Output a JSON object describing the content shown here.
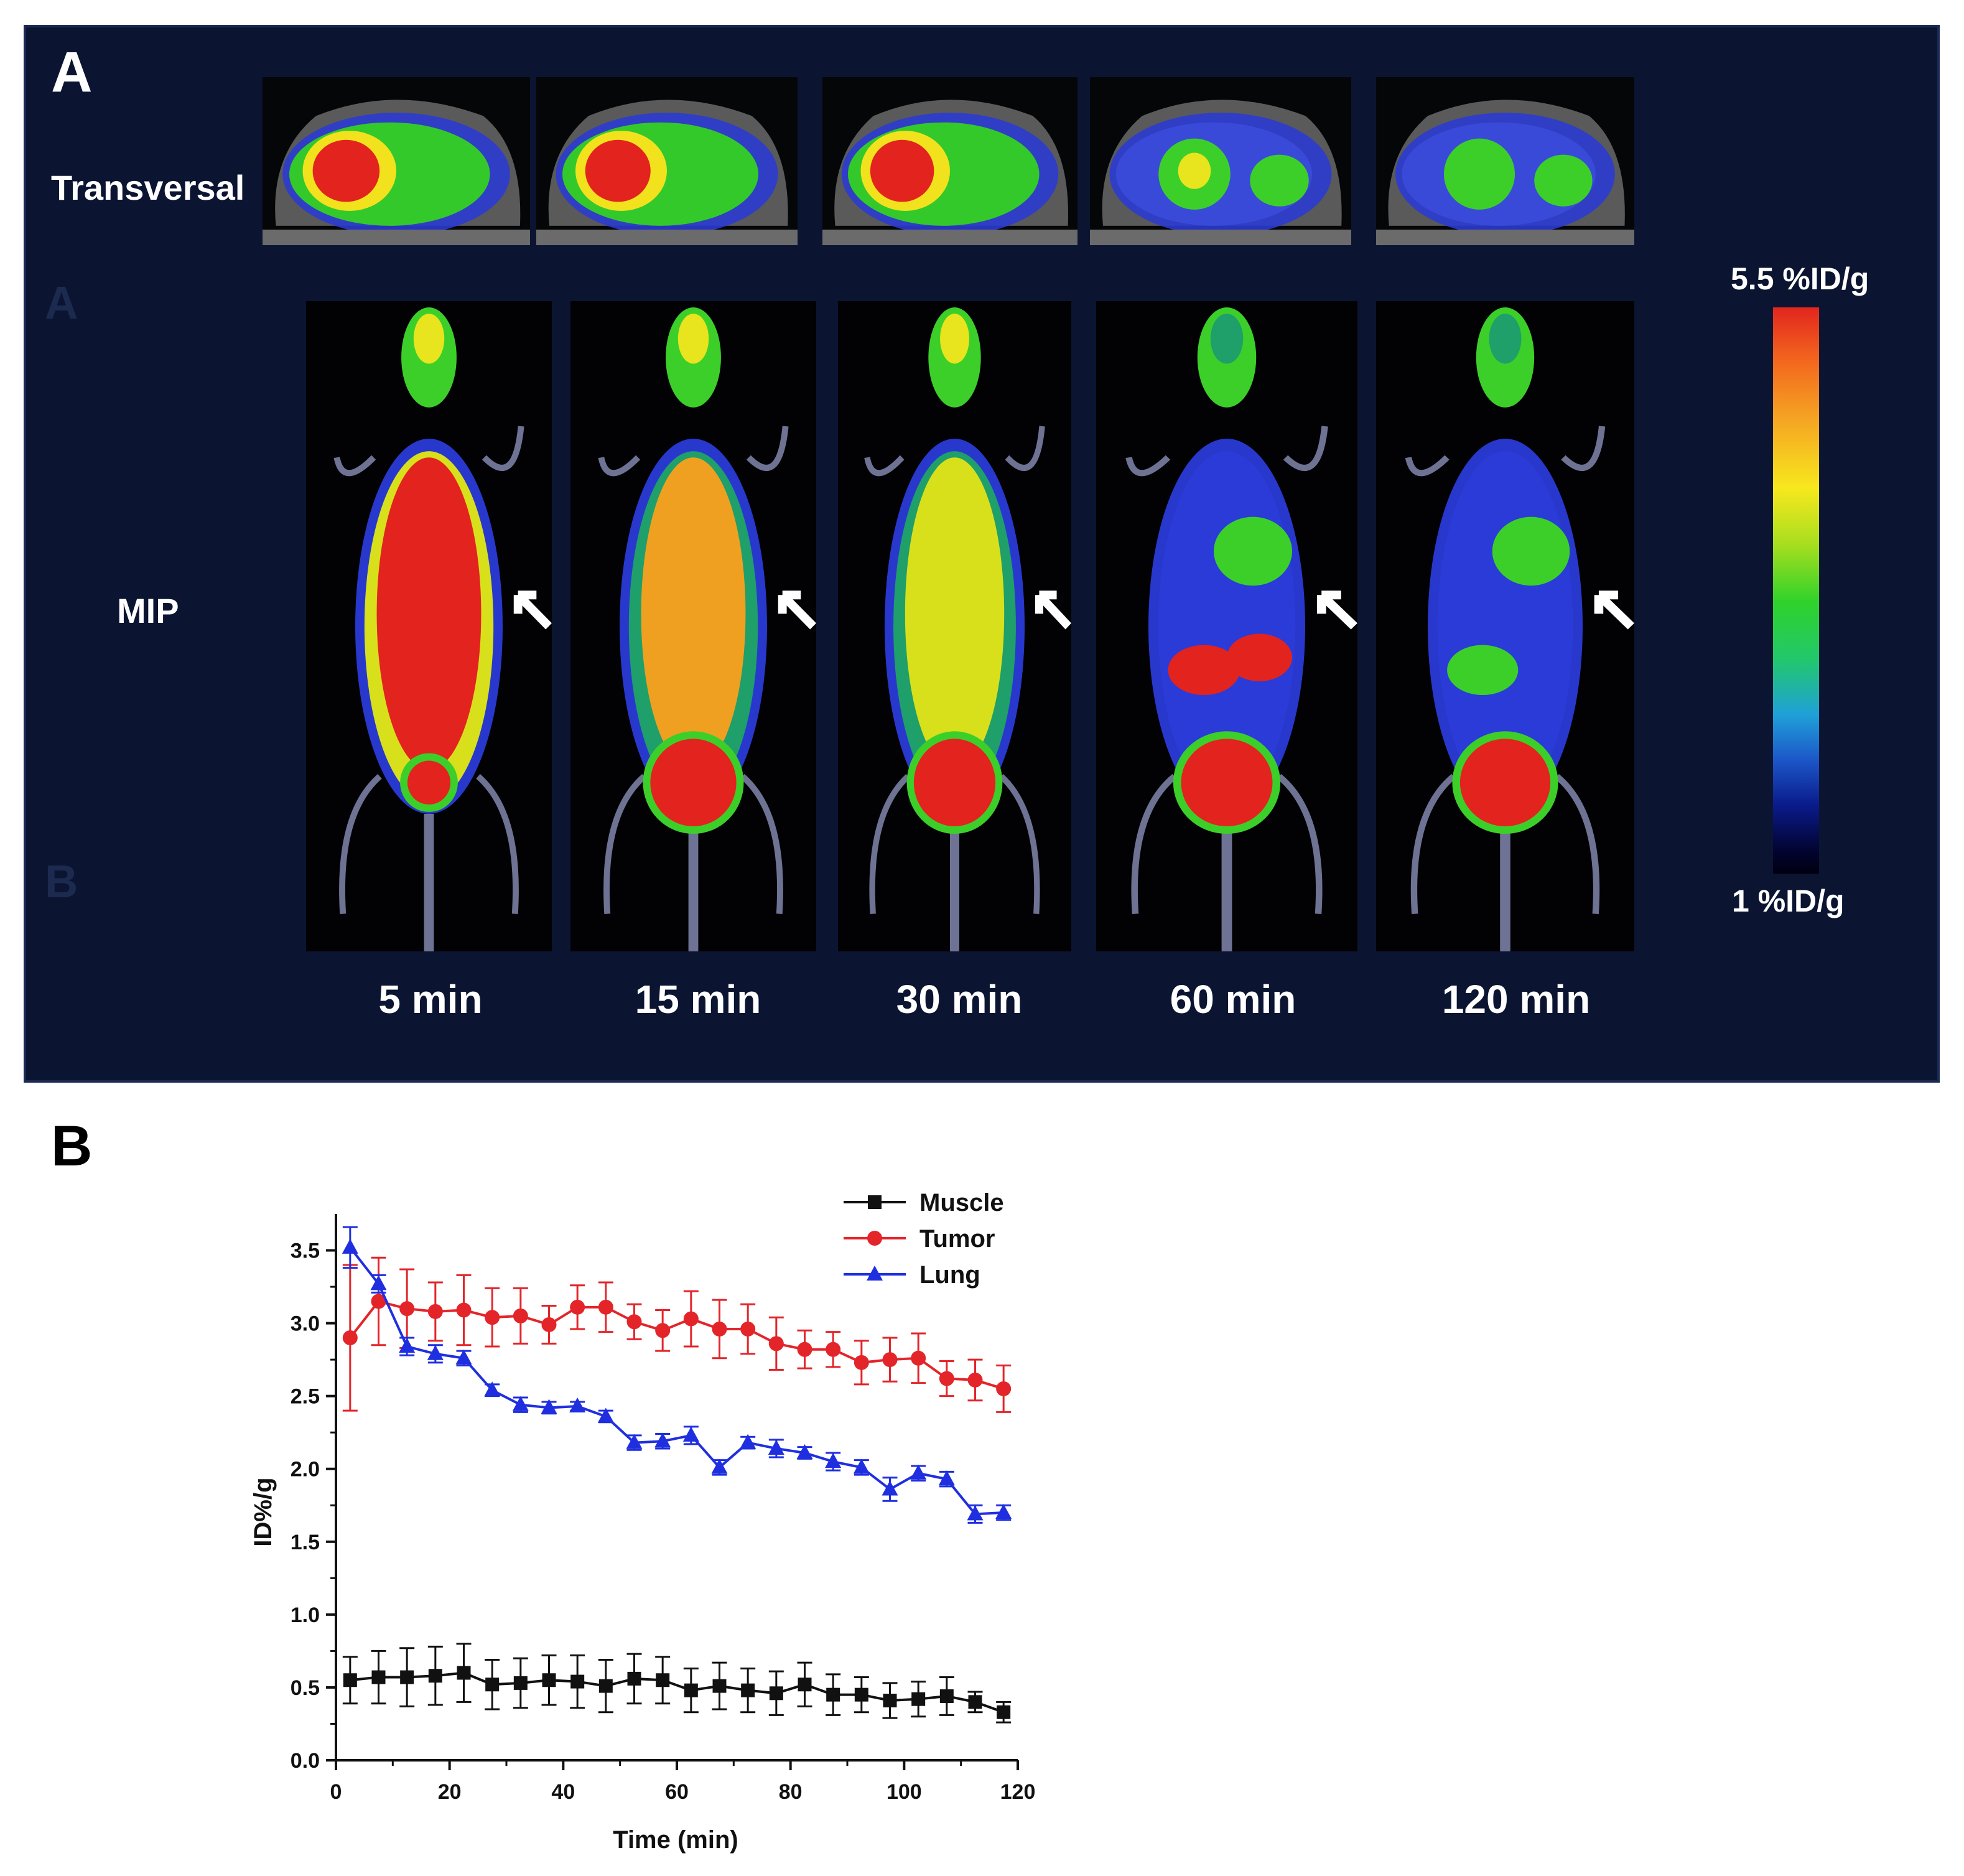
{
  "panel_a": {
    "letter": "A",
    "row_transversal": "Transversal",
    "row_mip": "MIP",
    "ghost_letters": [
      "A",
      "B"
    ],
    "time_labels": [
      "5 min",
      "15 min",
      "30 min",
      "60 min",
      "120 min"
    ],
    "colorbar": {
      "max_label": "5.5 %ID/g",
      "min_label": "1 %ID/g"
    }
  },
  "panel_b": {
    "letter": "B"
  },
  "chart_data": {
    "type": "line",
    "xlabel": "Time (min)",
    "ylabel": "ID%/g",
    "xlim": [
      0,
      120
    ],
    "ylim": [
      0,
      3.75
    ],
    "xticks": [
      "0",
      "20",
      "40",
      "60",
      "80",
      "100",
      "120"
    ],
    "yticks": [
      "0.0",
      "0.5",
      "1.0",
      "1.5",
      "2.0",
      "2.5",
      "3.0",
      "3.5"
    ],
    "legend_position": "top-right",
    "x": [
      2.5,
      7.5,
      12.5,
      17.5,
      22.5,
      27.5,
      32.5,
      37.5,
      42.5,
      47.5,
      52.5,
      57.5,
      62.5,
      67.5,
      72.5,
      77.5,
      82.5,
      87.5,
      92.5,
      97.5,
      102.5,
      107.5,
      112.5,
      117.5
    ],
    "series": [
      {
        "name": "Muscle",
        "color": "#111111",
        "marker": "square",
        "values": [
          0.55,
          0.57,
          0.57,
          0.58,
          0.6,
          0.52,
          0.53,
          0.55,
          0.54,
          0.51,
          0.56,
          0.55,
          0.48,
          0.51,
          0.48,
          0.46,
          0.52,
          0.45,
          0.45,
          0.41,
          0.42,
          0.44,
          0.4,
          0.33
        ],
        "errors": [
          0.16,
          0.18,
          0.2,
          0.2,
          0.2,
          0.17,
          0.17,
          0.17,
          0.18,
          0.18,
          0.17,
          0.16,
          0.15,
          0.16,
          0.15,
          0.15,
          0.15,
          0.14,
          0.12,
          0.12,
          0.12,
          0.13,
          0.07,
          0.07
        ]
      },
      {
        "name": "Tumor",
        "color": "#e3252a",
        "marker": "circle",
        "values": [
          2.9,
          3.15,
          3.1,
          3.08,
          3.09,
          3.04,
          3.05,
          2.99,
          3.11,
          3.11,
          3.01,
          2.95,
          3.03,
          2.96,
          2.96,
          2.86,
          2.82,
          2.82,
          2.73,
          2.75,
          2.76,
          2.62,
          2.61,
          2.55
        ],
        "errors": [
          0.5,
          0.3,
          0.27,
          0.2,
          0.24,
          0.2,
          0.19,
          0.13,
          0.15,
          0.17,
          0.12,
          0.14,
          0.19,
          0.2,
          0.17,
          0.18,
          0.13,
          0.12,
          0.15,
          0.15,
          0.17,
          0.12,
          0.14,
          0.16
        ]
      },
      {
        "name": "Lung",
        "color": "#1f2fe0",
        "marker": "triangle",
        "values": [
          3.52,
          3.27,
          2.84,
          2.79,
          2.76,
          2.54,
          2.44,
          2.42,
          2.43,
          2.36,
          2.18,
          2.19,
          2.23,
          2.01,
          2.18,
          2.14,
          2.11,
          2.05,
          2.01,
          1.86,
          1.97,
          1.93,
          1.69,
          1.7
        ],
        "errors": [
          0.14,
          0.06,
          0.06,
          0.06,
          0.05,
          0.04,
          0.05,
          0.04,
          0.03,
          0.04,
          0.05,
          0.05,
          0.06,
          0.05,
          0.04,
          0.06,
          0.04,
          0.06,
          0.05,
          0.08,
          0.05,
          0.05,
          0.06,
          0.05
        ]
      }
    ]
  }
}
